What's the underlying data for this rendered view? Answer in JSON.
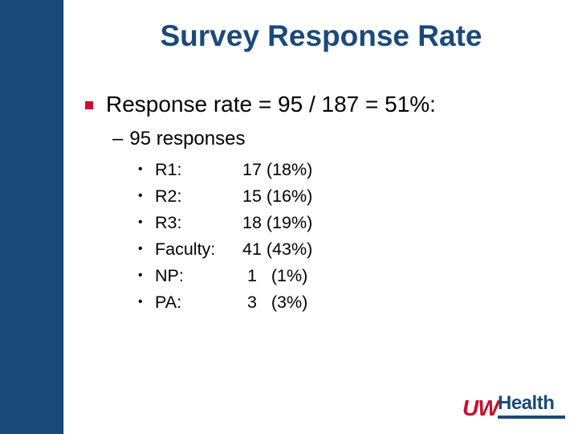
{
  "slide": {
    "title": "Survey Response Rate",
    "main_point": "Response rate = 95 / 187 = 51%:",
    "sub_point_dash": "–",
    "sub_point": "95 responses",
    "breakdown": [
      {
        "label": "R1:",
        "value": "17 (18%)"
      },
      {
        "label": "R2:",
        "value": "15 (16%)"
      },
      {
        "label": "R3:",
        "value": "18 (19%)"
      },
      {
        "label": "Faculty:",
        "value": "41 (43%)"
      },
      {
        "label": "NP:",
        "value": " 1   (1%)"
      },
      {
        "label": "PA:",
        "value": " 3   (3%)"
      }
    ],
    "bullet_glyph": "•"
  },
  "logo": {
    "part1": "UW",
    "part2": "Health"
  },
  "colors": {
    "accent_blue": "#1a4a7a",
    "accent_red": "#c8102e"
  }
}
